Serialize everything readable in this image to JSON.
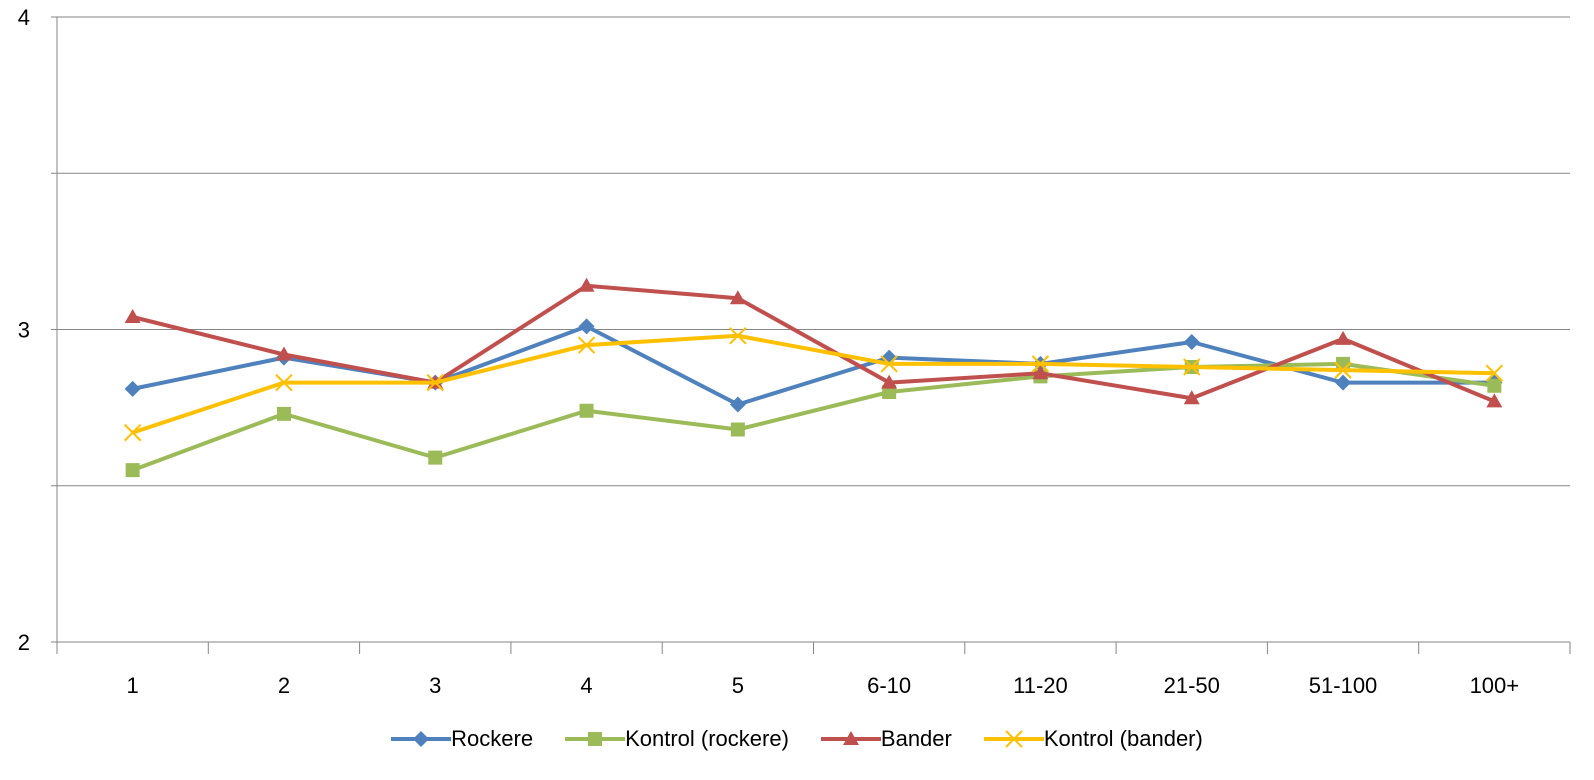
{
  "chart_data": {
    "type": "line",
    "categories": [
      "1",
      "2",
      "3",
      "4",
      "5",
      "6-10",
      "11-20",
      "21-50",
      "51-100",
      "100+"
    ],
    "ylim": [
      2,
      4
    ],
    "yticks": [
      "2",
      "3",
      "4"
    ],
    "grid": true,
    "legend_position": "bottom",
    "series": [
      {
        "name": "Rockere",
        "color": "#4F81BD",
        "marker": "diamond",
        "values": [
          2.81,
          2.91,
          2.83,
          3.01,
          2.76,
          2.91,
          2.89,
          2.96,
          2.83,
          2.83
        ]
      },
      {
        "name": "Kontrol (rockere)",
        "color": "#9BBB59",
        "marker": "square",
        "values": [
          2.55,
          2.73,
          2.59,
          2.74,
          2.68,
          2.8,
          2.85,
          2.88,
          2.89,
          2.82
        ]
      },
      {
        "name": "Bander",
        "color": "#C0504D",
        "marker": "triangle",
        "values": [
          3.04,
          2.92,
          2.83,
          3.14,
          3.1,
          2.83,
          2.86,
          2.78,
          2.97,
          2.77
        ]
      },
      {
        "name": "Kontrol (bander)",
        "color": "#FFC000",
        "marker": "x",
        "values": [
          2.67,
          2.83,
          2.83,
          2.95,
          2.98,
          2.89,
          2.89,
          2.88,
          2.87,
          2.86
        ]
      }
    ]
  }
}
